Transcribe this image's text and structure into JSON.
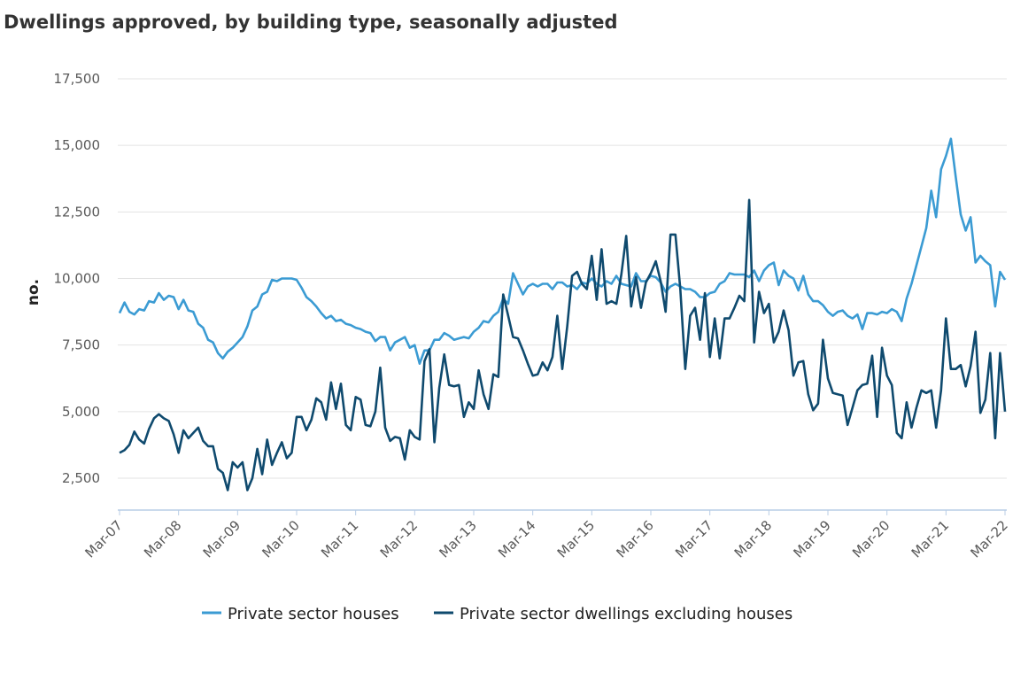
{
  "chart_data": {
    "type": "line",
    "title": "Dwellings approved, by building type, seasonally adjusted",
    "xlabel": "",
    "ylabel": "no.",
    "ylim": [
      1250,
      17500
    ],
    "yticks": [
      2500,
      5000,
      7500,
      10000,
      12500,
      15000,
      17500
    ],
    "ytick_labels": [
      "2,500",
      "5,000",
      "7,500",
      "10,000",
      "12,500",
      "15,000",
      "17,500"
    ],
    "xtick_labels": [
      "Mar-07",
      "Mar-08",
      "Mar-09",
      "Mar-10",
      "Mar-11",
      "Mar-12",
      "Mar-13",
      "Mar-14",
      "Mar-15",
      "Mar-16",
      "Mar-17",
      "Mar-18",
      "Mar-19",
      "Mar-20",
      "Mar-21",
      "Mar-22"
    ],
    "x_frequency": "monthly, Mar-07 to Mar-22",
    "grid": "horizontal",
    "legend_placement": "bottom",
    "series": [
      {
        "name": "Private sector houses",
        "color": "#3b9bd3",
        "values": [
          8700,
          9100,
          8750,
          8650,
          8850,
          8800,
          9150,
          9100,
          9450,
          9200,
          9350,
          9300,
          8850,
          9200,
          8800,
          8750,
          8300,
          8150,
          7700,
          7600,
          7200,
          7000,
          7250,
          7400,
          7600,
          7800,
          8200,
          8800,
          8950,
          9400,
          9500,
          9950,
          9900,
          10000,
          10000,
          10000,
          9950,
          9650,
          9300,
          9150,
          8950,
          8700,
          8500,
          8600,
          8400,
          8450,
          8300,
          8250,
          8150,
          8100,
          8000,
          7950,
          7650,
          7800,
          7800,
          7300,
          7600,
          7700,
          7800,
          7400,
          7500,
          6800,
          7300,
          7300,
          7700,
          7700,
          7950,
          7850,
          7700,
          7750,
          7800,
          7750,
          8000,
          8150,
          8400,
          8350,
          8600,
          8750,
          9250,
          9050,
          10200,
          9800,
          9400,
          9700,
          9800,
          9700,
          9800,
          9800,
          9600,
          9850,
          9850,
          9700,
          9750,
          9600,
          9850,
          9800,
          10000,
          9800,
          9700,
          9900,
          9800,
          10100,
          9800,
          9750,
          9700,
          10200,
          9900,
          9900,
          10100,
          10050,
          9850,
          9500,
          9700,
          9800,
          9700,
          9600,
          9600,
          9500,
          9300,
          9300,
          9450,
          9500,
          9800,
          9900,
          10200,
          10150,
          10150,
          10150,
          10050,
          10300,
          9900,
          10300,
          10500,
          10600,
          9750,
          10300,
          10100,
          10000,
          9550,
          10100,
          9400,
          9150,
          9150,
          9000,
          8750,
          8600,
          8750,
          8800,
          8600,
          8500,
          8650,
          8100,
          8700,
          8700,
          8650,
          8750,
          8700,
          8850,
          8750,
          8400,
          9250,
          9800,
          10500,
          11200,
          11900,
          13300,
          12300,
          14100,
          14600,
          15250,
          13800,
          12400,
          11800,
          12300,
          10600,
          10850,
          10650,
          10500,
          8950,
          10250,
          9950
        ]
      },
      {
        "name": "Private sector dwellings excluding houses",
        "color": "#0f4a6e",
        "values": [
          3450,
          3550,
          3750,
          4250,
          3950,
          3800,
          4350,
          4750,
          4900,
          4750,
          4650,
          4150,
          3450,
          4300,
          4000,
          4200,
          4400,
          3900,
          3700,
          3700,
          2850,
          2700,
          2050,
          3100,
          2900,
          3100,
          2050,
          2500,
          3600,
          2650,
          3950,
          3000,
          3450,
          3850,
          3250,
          3450,
          4800,
          4800,
          4300,
          4700,
          5500,
          5350,
          4700,
          6100,
          5100,
          6050,
          4500,
          4300,
          5550,
          5450,
          4500,
          4450,
          5000,
          6650,
          4400,
          3900,
          4050,
          4000,
          3200,
          4300,
          4050,
          3950,
          6900,
          7350,
          3850,
          5900,
          7150,
          6000,
          5950,
          6000,
          4800,
          5350,
          5100,
          6550,
          5650,
          5100,
          6400,
          6300,
          9400,
          8600,
          7800,
          7750,
          7300,
          6800,
          6350,
          6400,
          6850,
          6550,
          7050,
          8600,
          6600,
          8200,
          10100,
          10250,
          9800,
          9600,
          10850,
          9200,
          11100,
          9050,
          9150,
          9050,
          10150,
          11600,
          8950,
          10050,
          8900,
          9850,
          10200,
          10650,
          9900,
          8750,
          11650,
          11650,
          9600,
          6600,
          8600,
          8900,
          7700,
          9450,
          7050,
          8500,
          7000,
          8500,
          8500,
          8900,
          9350,
          9150,
          12950,
          7600,
          9500,
          8700,
          9050,
          7600,
          8000,
          8800,
          8050,
          6350,
          6850,
          6900,
          5650,
          5050,
          5300,
          7700,
          6250,
          5700,
          5650,
          5600,
          4500,
          5150,
          5800,
          6000,
          6050,
          7100,
          4800,
          7400,
          6350,
          6000,
          4200,
          4000,
          5350,
          4400,
          5150,
          5800,
          5700,
          5800,
          4400,
          5800,
          8500,
          6600,
          6600,
          6750,
          5950,
          6700,
          8000,
          4950,
          5450,
          7200,
          4000,
          7200,
          5000
        ]
      }
    ]
  }
}
